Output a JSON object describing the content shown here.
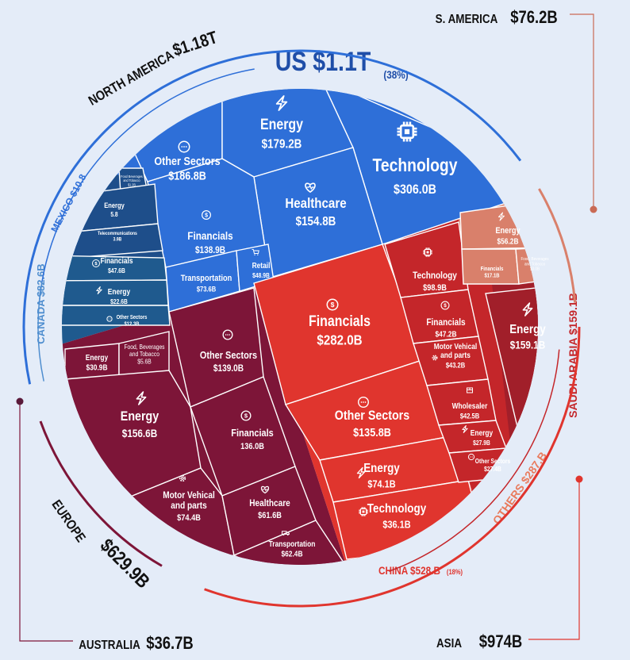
{
  "chart_data": {
    "type": "treemap",
    "regions": [
      {
        "key": "us",
        "region": "US",
        "label": "US $1.1T",
        "share": "(38%)",
        "total_billions": 1100,
        "color": "#2e6fd8",
        "cells": [
          {
            "name": "Other Sectors",
            "value": "$186.8B",
            "billions": 186.8,
            "icon": "other-icon"
          },
          {
            "name": "Energy",
            "value": "$179.2B",
            "billions": 179.2,
            "icon": "energy-icon"
          },
          {
            "name": "Technology",
            "value": "$306.0B",
            "billions": 306.0,
            "icon": "chip-icon"
          },
          {
            "name": "Healthcare",
            "value": "$154.8B",
            "billions": 154.8,
            "icon": "heart-icon"
          },
          {
            "name": "Financials",
            "value": "$138.9B",
            "billions": 138.9,
            "icon": "dollar-icon"
          },
          {
            "name": "Transportation",
            "value": "$73.6B",
            "billions": 73.6,
            "icon": "truck-icon"
          },
          {
            "name": "Retail",
            "value": "$48.9B",
            "billions": 48.9,
            "icon": "cart-icon"
          }
        ]
      },
      {
        "key": "mexico",
        "region": "MEXICO",
        "label": "MEXICO $10.8",
        "total_billions": 10.8,
        "color": "#1e4e8a",
        "cells": [
          {
            "name": "Food Beverages and Tobacco",
            "value": "$1.2B",
            "billions": 1.2
          },
          {
            "name": "Energy",
            "value": "5.8",
            "billions": 5.8
          },
          {
            "name": "Telecommunications",
            "value": "3.9B",
            "billions": 3.9
          }
        ]
      },
      {
        "key": "canada",
        "region": "CANADA",
        "label": "CANADA $82.6B",
        "total_billions": 82.6,
        "color": "#1f5a8e",
        "cells": [
          {
            "name": "Financials",
            "value": "$47.6B",
            "billions": 47.6,
            "icon": "dollar-icon"
          },
          {
            "name": "Energy",
            "value": "$22.6B",
            "billions": 22.6,
            "icon": "energy-icon"
          },
          {
            "name": "Other Sectors",
            "value": "$12.3B",
            "billions": 12.3,
            "icon": "other-icon"
          }
        ]
      },
      {
        "key": "europe",
        "region": "EUROPE",
        "label": "EUROPE $629.9B",
        "total_billions": 629.9,
        "color": "#7d1538",
        "cells": [
          {
            "name": "Energy",
            "value": "$30.9B",
            "billions": 30.9
          },
          {
            "name": "Food, Beverages and Tobacco",
            "value": "$5.6B",
            "billions": 5.6
          },
          {
            "name": "Other Sectors",
            "value": "$139.0B",
            "billions": 139.0,
            "icon": "other-icon"
          },
          {
            "name": "Energy",
            "value": "$156.6B",
            "billions": 156.6,
            "icon": "energy-icon"
          },
          {
            "name": "Financials",
            "value": "136.0B",
            "billions": 136.0,
            "icon": "dollar-icon"
          },
          {
            "name": "Motor Vehical and parts",
            "value": "$74.4B",
            "billions": 74.4,
            "icon": "gear-icon"
          },
          {
            "name": "Healthcare",
            "value": "$61.6B",
            "billions": 61.6,
            "icon": "heart-icon"
          },
          {
            "name": "Transportation",
            "value": "$62.4B",
            "billions": 62.4,
            "icon": "truck-icon"
          }
        ]
      },
      {
        "key": "china",
        "region": "CHINA",
        "label": "CHINA $528.B",
        "share": "(18%)",
        "total_billions": 528,
        "color": "#e0352e",
        "cells": [
          {
            "name": "Financials",
            "value": "$282.0B",
            "billions": 282.0,
            "icon": "dollar-icon"
          },
          {
            "name": "Other Sectors",
            "value": "$135.8B",
            "billions": 135.8,
            "icon": "other-icon"
          },
          {
            "name": "Energy",
            "value": "$74.1B",
            "billions": 74.1,
            "icon": "energy-icon"
          },
          {
            "name": "Technology",
            "value": "$36.1B",
            "billions": 36.1,
            "icon": "chip-icon"
          }
        ]
      },
      {
        "key": "others",
        "region": "OTHERS",
        "label": "OTHERS $287.B",
        "total_billions": 287,
        "color": "#c4262a",
        "cells": [
          {
            "name": "Technology",
            "value": "$98.9B",
            "billions": 98.9,
            "icon": "chip-icon"
          },
          {
            "name": "Financials",
            "value": "$47.2B",
            "billions": 47.2,
            "icon": "dollar-icon"
          },
          {
            "name": "Motor Vehical and parts",
            "value": "$43.2B",
            "billions": 43.2,
            "icon": "gear-icon"
          },
          {
            "name": "Wholesaler",
            "value": "$42.5B",
            "billions": 42.5,
            "icon": "box-icon"
          },
          {
            "name": "Energy",
            "value": "$27.9B",
            "billions": 27.9,
            "icon": "energy-icon"
          },
          {
            "name": "Other Sectors",
            "value": "$27.4B",
            "billions": 27.4,
            "icon": "other-icon"
          }
        ]
      },
      {
        "key": "saudi",
        "region": "SAUDI ARABIA",
        "label": "SAUDI ARABIA $159.1B",
        "total_billions": 159.1,
        "color": "#a11f2a",
        "cells": [
          {
            "name": "Energy",
            "value": "$159.1B",
            "billions": 159.1,
            "icon": "energy-icon"
          }
        ]
      },
      {
        "key": "samerica",
        "region": "S. AMERICA",
        "label": "S. AMERICA $76.2B",
        "total_billions": 76.2,
        "color": "#d9806b",
        "cells": [
          {
            "name": "Energy",
            "value": "$56.2B",
            "billions": 56.2,
            "icon": "energy-icon"
          },
          {
            "name": "Financials",
            "value": "$17.1B",
            "billions": 17.1
          },
          {
            "name": "Food, Beverages and Tobacco",
            "value": "$3.0B",
            "billions": 3.0
          }
        ]
      }
    ],
    "continents": [
      {
        "key": "north-america",
        "name": "NORTH AMERICA",
        "value": "$1.18T",
        "billions": 1180,
        "color": "#2e6fd8"
      },
      {
        "key": "s-america",
        "name": "S. AMERICA",
        "value": "$76.2B",
        "billions": 76.2,
        "color": "#d9806b"
      },
      {
        "key": "asia",
        "name": "ASIA",
        "value": "$974B",
        "billions": 974,
        "color": "#e0352e"
      },
      {
        "key": "europe",
        "name": "EUROPE",
        "value": "$629.9B",
        "billions": 629.9,
        "color": "#7d1538"
      },
      {
        "key": "australia",
        "name": "AUSTRALIA",
        "value": "$36.7B",
        "billions": 36.7,
        "color": "#7d1538"
      }
    ]
  }
}
